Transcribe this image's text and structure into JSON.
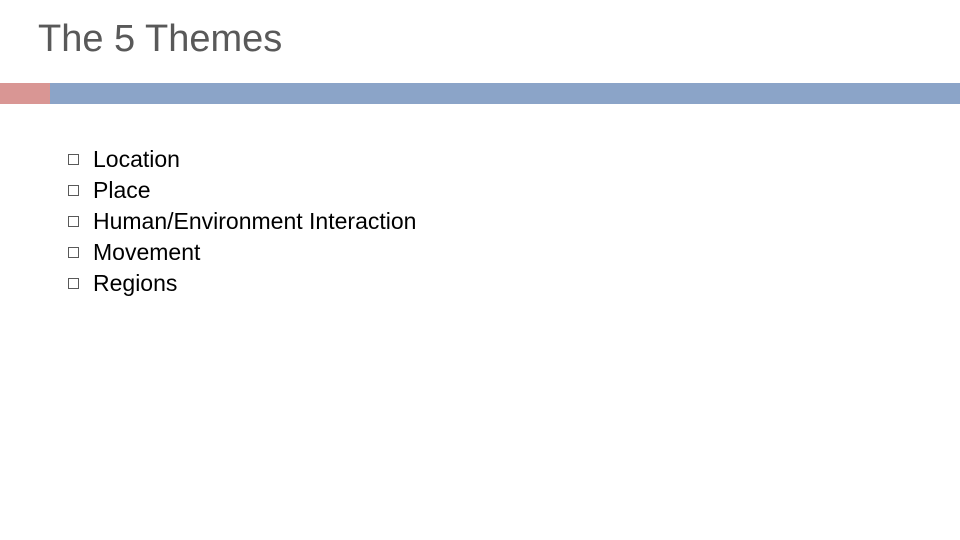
{
  "slide": {
    "title": "The 5 Themes",
    "title_color": "#595959",
    "title_fontsize": 38,
    "accent_bar_color": "#d99694",
    "blue_bar_color": "#8ba4c8",
    "background_color": "#ffffff",
    "list_items": [
      {
        "text": "Location"
      },
      {
        "text": "Place"
      },
      {
        "text": "Human/Environment Interaction"
      },
      {
        "text": "Movement"
      },
      {
        "text": "Regions"
      }
    ],
    "list_fontsize": 23,
    "list_text_color": "#000000",
    "bullet_border_color": "#595959",
    "bullet_size": 11
  }
}
